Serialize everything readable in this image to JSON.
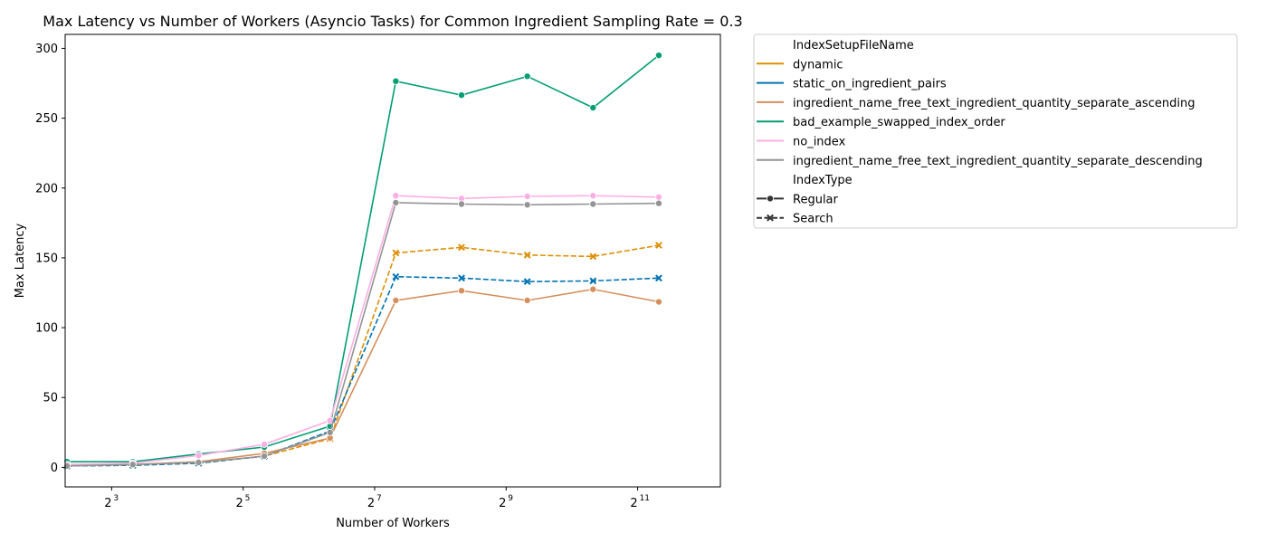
{
  "chart_data": {
    "type": "line",
    "title": "Max Latency vs Number of Workers (Asyncio Tasks) for Common Ingredient Sampling Rate = 0.3",
    "xlabel": "Number of Workers",
    "ylabel": "Max Latency",
    "x_scale": "log2",
    "xlim": [
      4.9,
      4900
    ],
    "ylim": [
      -14,
      310
    ],
    "x_ticks": [
      {
        "value": 8,
        "base": "2",
        "exp": "3"
      },
      {
        "value": 32,
        "base": "2",
        "exp": "5"
      },
      {
        "value": 128,
        "base": "2",
        "exp": "7"
      },
      {
        "value": 512,
        "base": "2",
        "exp": "9"
      },
      {
        "value": 2048,
        "base": "2",
        "exp": "11"
      }
    ],
    "y_ticks": [
      0,
      50,
      100,
      150,
      200,
      250,
      300
    ],
    "grid": false,
    "legend_position": "outside-right",
    "legend": {
      "hue_title": "IndexSetupFileName",
      "style_title": "IndexType",
      "style_entries": [
        {
          "label": "Regular",
          "dash": "solid",
          "marker": "circle"
        },
        {
          "label": "Search",
          "dash": "dashed",
          "marker": "x"
        }
      ]
    },
    "x": [
      5,
      10,
      20,
      40,
      80,
      160,
      320,
      640,
      1280,
      2560
    ],
    "series": [
      {
        "name": "dynamic",
        "color": "#de8f05",
        "index_type": "Search",
        "marker": "x",
        "values": [
          1,
          1.5,
          3,
          8,
          20.5,
          153.5,
          157.5,
          152,
          151,
          159
        ]
      },
      {
        "name": "static_on_ingredient_pairs",
        "color": "#0173b2",
        "index_type": "Search",
        "marker": "x",
        "values": [
          1,
          1.5,
          3,
          8,
          26,
          136.5,
          135.5,
          133,
          133.5,
          135.5
        ]
      },
      {
        "name": "ingredient_name_free_text_ingredient_quantity_separate_ascending",
        "color": "#d58f5c",
        "index_type": "Regular",
        "marker": "circle",
        "values": [
          1.5,
          2,
          4,
          10,
          21,
          119.5,
          126.5,
          119.5,
          127.5,
          118.5
        ]
      },
      {
        "name": "bad_example_swapped_index_order",
        "color": "#029e73",
        "index_type": "Regular",
        "marker": "circle",
        "values": [
          4,
          4,
          9.5,
          14.5,
          29.5,
          276.5,
          266.5,
          280,
          257.5,
          295
        ]
      },
      {
        "name": "no_index",
        "color": "#fbafe4",
        "index_type": "Regular",
        "marker": "circle",
        "values": [
          2,
          3,
          8.5,
          16.5,
          33.5,
          194.5,
          192.5,
          194,
          194.5,
          193.5
        ]
      },
      {
        "name": "ingredient_name_free_text_ingredient_quantity_separate_descending",
        "color": "#949494",
        "index_type": "Regular",
        "marker": "circle",
        "values": [
          1,
          2,
          3.5,
          8,
          25,
          189.5,
          188.5,
          188,
          188.5,
          189
        ]
      }
    ]
  }
}
